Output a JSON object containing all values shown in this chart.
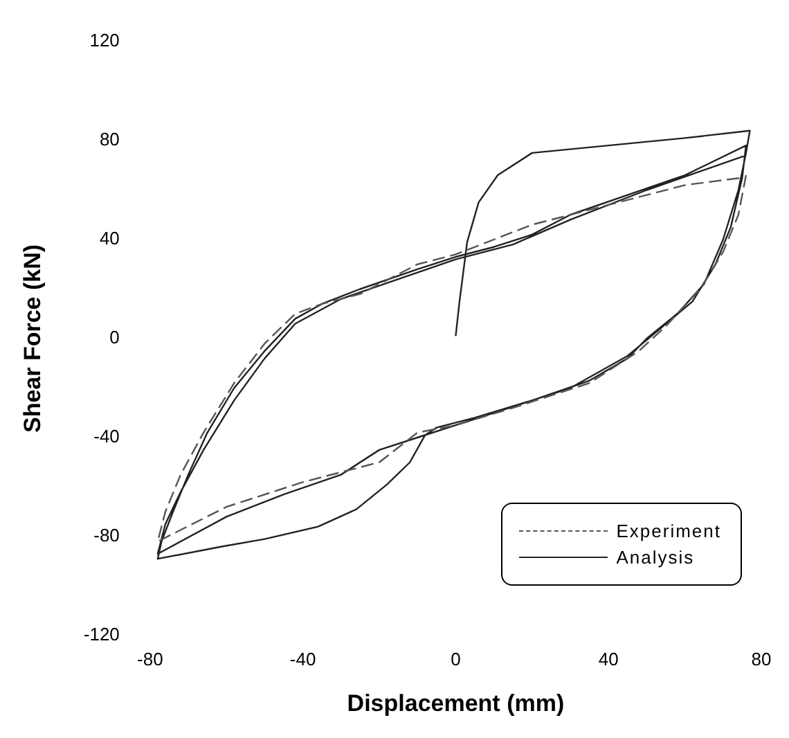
{
  "chart_data": {
    "type": "line",
    "xlabel": "Displacement (mm)",
    "ylabel": "Shear Force (kN)",
    "xlim": [
      -80,
      80
    ],
    "xticks": [
      -80,
      -40,
      0,
      40,
      80
    ],
    "ylim": [
      -120,
      120
    ],
    "yticks": [
      -120,
      -80,
      -40,
      0,
      40,
      80,
      120
    ],
    "grid": false,
    "legend": "bottom right",
    "marker": "none",
    "series": [
      {
        "name": "Experiment",
        "color": "#555555",
        "line_style": "dashed",
        "x": [
          76,
          74,
          70,
          64,
          55,
          48,
          35,
          15,
          0,
          -10,
          -20,
          -40,
          -60,
          -78,
          -76,
          -72,
          -66,
          -58,
          -50,
          -42,
          -35,
          -25,
          -10,
          0,
          10,
          20,
          40,
          60,
          75
        ],
        "values": [
          66,
          50,
          35,
          20,
          5,
          -5,
          -18,
          -28,
          -35,
          -38,
          -50,
          -58,
          -68,
          -82,
          -70,
          -55,
          -38,
          -18,
          -2,
          10,
          14,
          18,
          30,
          34,
          40,
          46,
          54,
          62,
          65
        ]
      },
      {
        "name": "Analysis",
        "color": "#222222",
        "line_style": "solid",
        "x": [
          0,
          1,
          3,
          6,
          11,
          20,
          40,
          60,
          77,
          76,
          74,
          70,
          65,
          58,
          50,
          45,
          35,
          20,
          5,
          -5,
          -8,
          -12,
          -18,
          -26,
          -36,
          -50,
          -61,
          -78,
          -77,
          -74,
          -70,
          -65,
          -58,
          -50,
          -42,
          -35,
          -25,
          -10,
          0,
          10,
          20,
          30,
          45,
          60,
          76,
          75,
          72,
          68,
          62,
          52,
          45,
          30,
          10,
          0,
          -10,
          -20,
          -30,
          -45,
          -60,
          -78,
          -76,
          -72,
          -66,
          -58,
          -50,
          -42,
          -30,
          -15,
          0,
          15,
          30,
          50,
          76
        ],
        "values": [
          1,
          15,
          39,
          55,
          66,
          75,
          78,
          81,
          84,
          75,
          60,
          40,
          22,
          10,
          0,
          -8,
          -17,
          -25,
          -32,
          -36,
          -39,
          -50,
          -59,
          -69,
          -76,
          -81,
          -84,
          -89,
          -82,
          -70,
          -55,
          -38,
          -20,
          -5,
          8,
          14,
          20,
          28,
          33,
          37,
          42,
          50,
          58,
          66,
          78,
          65,
          45,
          30,
          15,
          2,
          -7,
          -20,
          -30,
          -35,
          -40,
          -45,
          -55,
          -63,
          -72,
          -87,
          -75,
          -62,
          -45,
          -25,
          -8,
          6,
          16,
          24,
          32,
          38,
          48,
          60,
          74
        ]
      }
    ]
  }
}
